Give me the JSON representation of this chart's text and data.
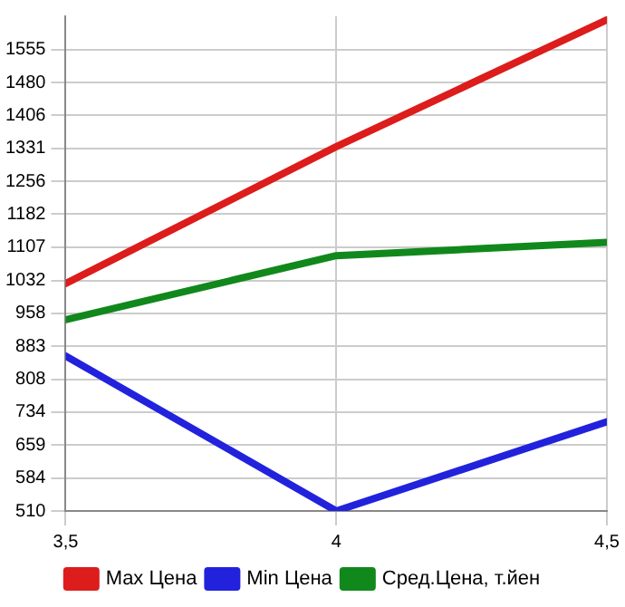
{
  "chart_data": {
    "type": "line",
    "x": [
      3.5,
      4,
      4.5
    ],
    "xlim": [
      3.5,
      4.5
    ],
    "xticks": [
      {
        "value": 3.5,
        "label": "3,5"
      },
      4,
      {
        "value": 4.5,
        "label": "4,5"
      }
    ],
    "ylim": [
      510,
      1630
    ],
    "yticks": [
      510,
      584,
      659,
      734,
      808,
      883,
      958,
      1032,
      1107,
      1182,
      1256,
      1331,
      1406,
      1480,
      1555
    ],
    "series": [
      {
        "name": "Max Цена",
        "color": "#dd1c1c",
        "values": [
          1025,
          1335,
          1622
        ]
      },
      {
        "name": "Min Цена",
        "color": "#2222dd",
        "values": [
          861,
          510,
          712
        ]
      },
      {
        "name": "Сред.Цена, т.йен",
        "color": "#11881c",
        "values": [
          943,
          1088,
          1118
        ]
      }
    ],
    "grid": true,
    "legend": "bottom",
    "marker": "none",
    "line_style": "solid"
  }
}
